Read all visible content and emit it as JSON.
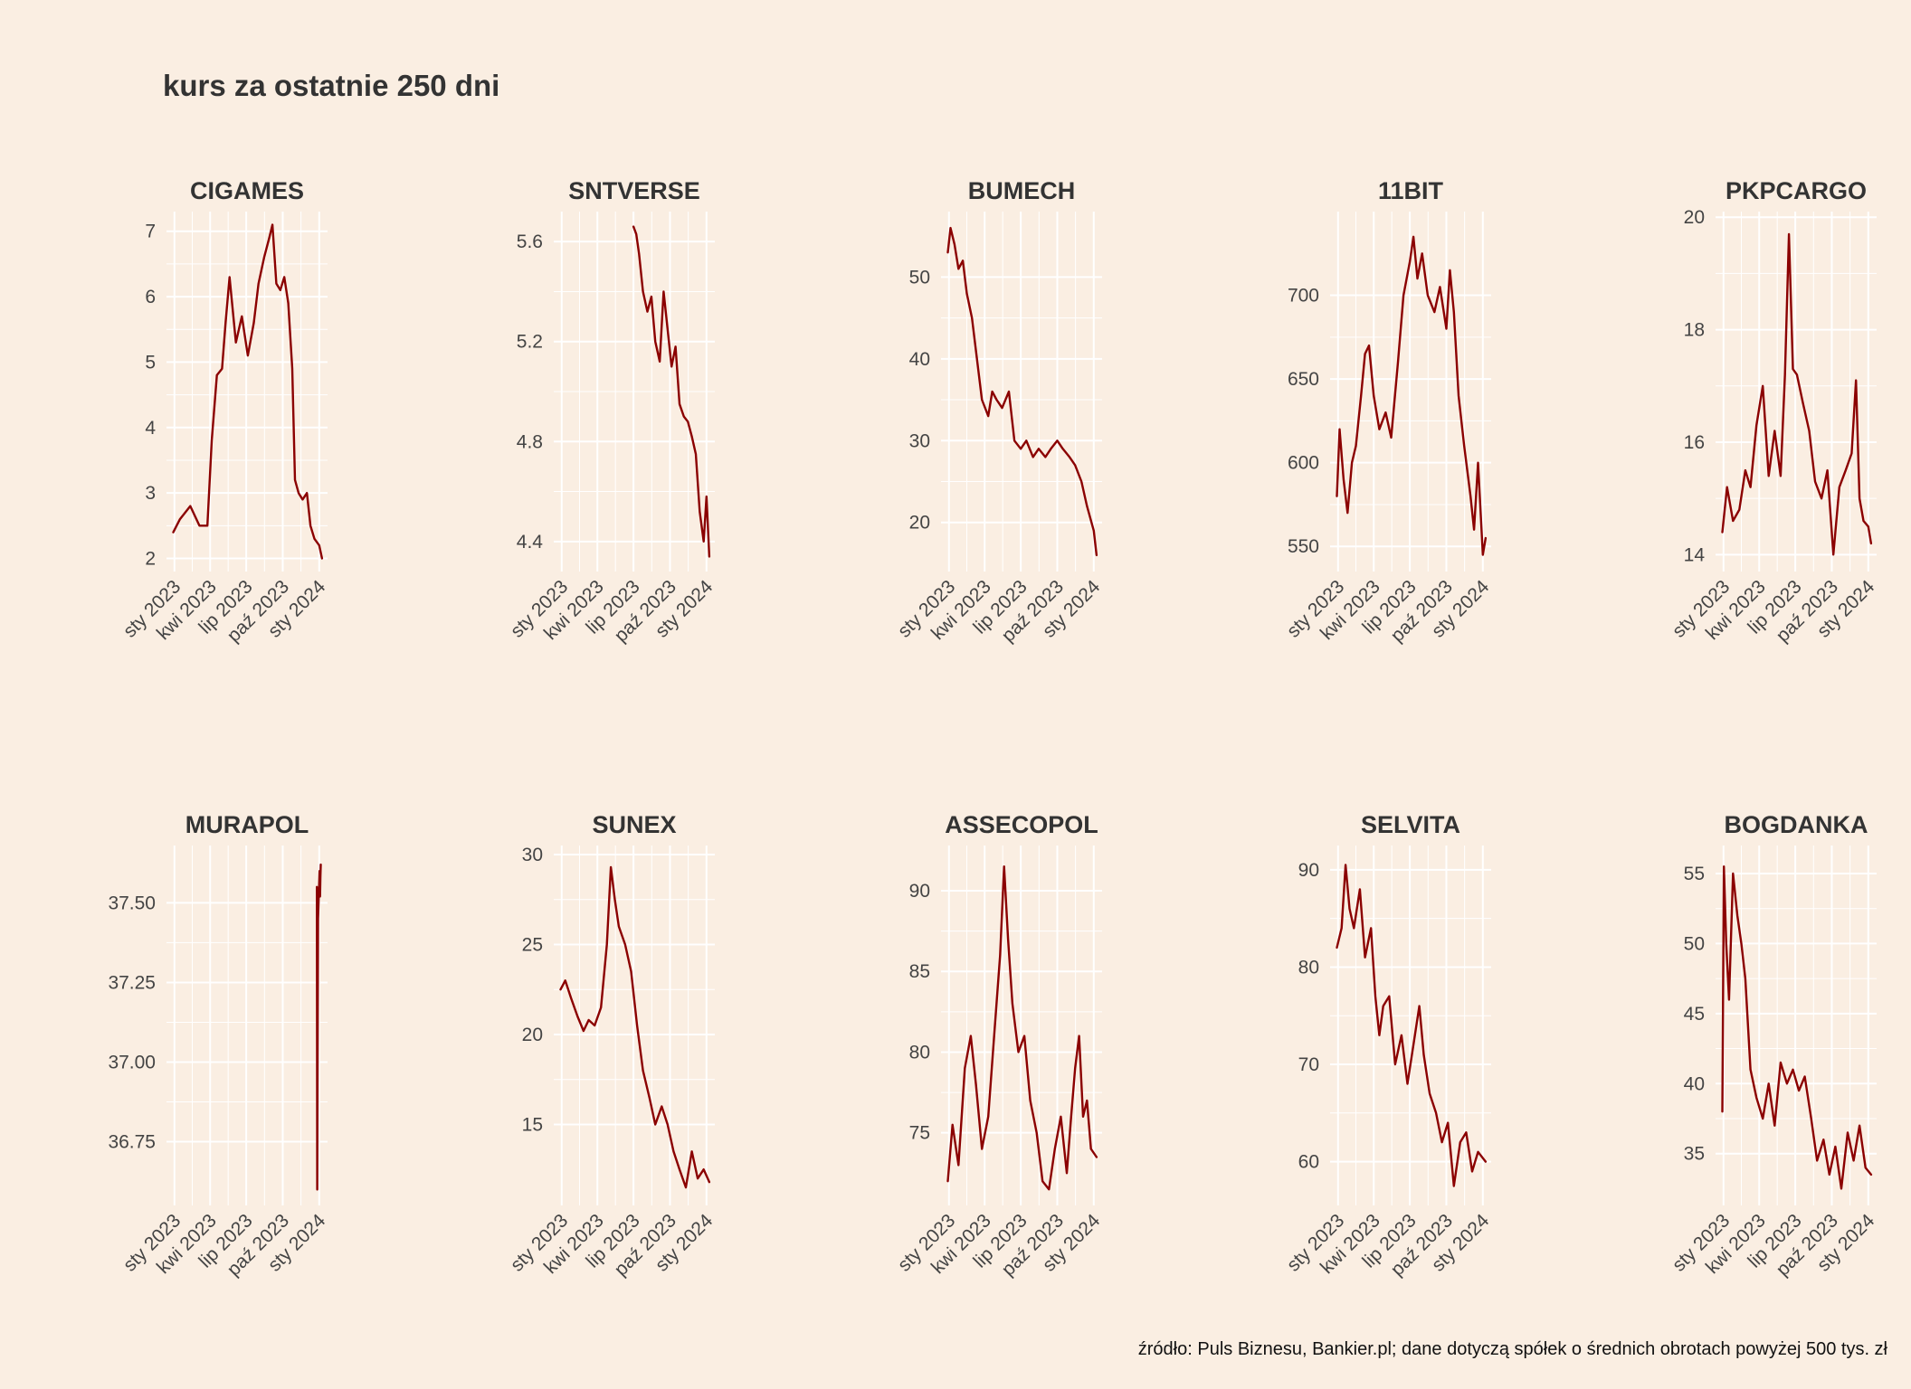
{
  "page": {
    "title": "kurs za ostatnie 250 dni",
    "caption": "źródło: Puls Biznesu, Bankier.pl; dane dotyczą spółek o średnich obrotach powyżej 500 tys. zł"
  },
  "colors": {
    "background": "#faeee2",
    "line": "#8b0000",
    "grid": "#ffffff",
    "text": "#333333"
  },
  "chart_data": [
    {
      "type": "line",
      "title": "CIGAMES",
      "x_ticks": [
        "sty 2023",
        "kwi 2023",
        "lip 2023",
        "paź 2023",
        "sty 2024"
      ],
      "xlim": [
        "2022-12-12",
        "2024-01-22"
      ],
      "ylim": [
        1.8,
        7.3
      ],
      "y_ticks": [
        2,
        3,
        4,
        5,
        6,
        7
      ],
      "y_tick_labels": [
        "2",
        "3",
        "4",
        "5",
        "6",
        "7"
      ],
      "x": [
        "2022-12-29",
        "2023-01-15",
        "2023-02-10",
        "2023-03-05",
        "2023-03-25",
        "2023-04-05",
        "2023-04-18",
        "2023-05-01",
        "2023-05-10",
        "2023-05-20",
        "2023-06-05",
        "2023-06-20",
        "2023-07-05",
        "2023-07-20",
        "2023-08-01",
        "2023-08-15",
        "2023-08-28",
        "2023-09-05",
        "2023-09-15",
        "2023-09-25",
        "2023-10-05",
        "2023-10-15",
        "2023-10-25",
        "2023-11-01",
        "2023-11-10",
        "2023-11-20",
        "2023-12-01",
        "2023-12-10",
        "2023-12-20",
        "2024-01-01",
        "2024-01-08"
      ],
      "values": [
        2.4,
        2.6,
        2.8,
        2.5,
        2.5,
        3.8,
        4.8,
        4.9,
        5.6,
        6.3,
        5.3,
        5.7,
        5.1,
        5.6,
        6.2,
        6.6,
        6.9,
        7.1,
        6.2,
        6.1,
        6.3,
        5.9,
        4.9,
        3.2,
        3.0,
        2.9,
        3.0,
        2.5,
        2.3,
        2.2,
        2.0
      ]
    },
    {
      "type": "line",
      "title": "SNTVERSE",
      "x_ticks": [
        "sty 2023",
        "kwi 2023",
        "lip 2023",
        "paź 2023",
        "sty 2024"
      ],
      "xlim": [
        "2022-12-12",
        "2024-01-22"
      ],
      "ylim": [
        4.28,
        5.72
      ],
      "y_ticks": [
        4.4,
        4.8,
        5.2,
        5.6
      ],
      "y_tick_labels": [
        "4.4",
        "4.8",
        "5.2",
        "5.6"
      ],
      "x": [
        "2023-07-01",
        "2023-07-08",
        "2023-07-15",
        "2023-07-25",
        "2023-08-05",
        "2023-08-15",
        "2023-08-25",
        "2023-09-05",
        "2023-09-15",
        "2023-09-25",
        "2023-10-05",
        "2023-10-15",
        "2023-10-25",
        "2023-11-05",
        "2023-11-15",
        "2023-11-25",
        "2023-12-05",
        "2023-12-15",
        "2023-12-25",
        "2024-01-01",
        "2024-01-08"
      ],
      "values": [
        5.66,
        5.63,
        5.55,
        5.4,
        5.32,
        5.38,
        5.2,
        5.12,
        5.4,
        5.25,
        5.1,
        5.18,
        4.95,
        4.9,
        4.88,
        4.82,
        4.75,
        4.52,
        4.4,
        4.58,
        4.34
      ]
    },
    {
      "type": "line",
      "title": "BUMECH",
      "x_ticks": [
        "sty 2023",
        "kwi 2023",
        "lip 2023",
        "paź 2023",
        "sty 2024"
      ],
      "xlim": [
        "2022-12-12",
        "2024-01-22"
      ],
      "ylim": [
        14,
        58
      ],
      "y_ticks": [
        20,
        30,
        40,
        50
      ],
      "y_tick_labels": [
        "20",
        "30",
        "40",
        "50"
      ],
      "x": [
        "2022-12-29",
        "2023-01-05",
        "2023-01-15",
        "2023-01-25",
        "2023-02-05",
        "2023-02-15",
        "2023-02-28",
        "2023-03-10",
        "2023-03-25",
        "2023-04-10",
        "2023-04-20",
        "2023-05-01",
        "2023-05-15",
        "2023-06-01",
        "2023-06-15",
        "2023-07-01",
        "2023-07-15",
        "2023-08-01",
        "2023-08-15",
        "2023-09-01",
        "2023-09-15",
        "2023-10-01",
        "2023-10-15",
        "2023-11-01",
        "2023-11-15",
        "2023-12-01",
        "2023-12-15",
        "2024-01-01",
        "2024-01-08"
      ],
      "values": [
        53,
        56,
        54,
        51,
        52,
        48,
        45,
        41,
        35,
        33,
        36,
        35,
        34,
        36,
        30,
        29,
        30,
        28,
        29,
        28,
        29,
        30,
        29,
        28,
        27,
        25,
        22,
        19,
        16
      ]
    },
    {
      "type": "line",
      "title": "11BIT",
      "x_ticks": [
        "sty 2023",
        "kwi 2023",
        "lip 2023",
        "paź 2023",
        "sty 2024"
      ],
      "xlim": [
        "2022-12-12",
        "2024-01-22"
      ],
      "ylim": [
        535,
        750
      ],
      "y_ticks": [
        550,
        600,
        650,
        700
      ],
      "y_tick_labels": [
        "550",
        "600",
        "650",
        "700"
      ],
      "x": [
        "2022-12-29",
        "2023-01-05",
        "2023-01-15",
        "2023-01-25",
        "2023-02-05",
        "2023-02-15",
        "2023-02-28",
        "2023-03-10",
        "2023-03-20",
        "2023-04-01",
        "2023-04-15",
        "2023-05-01",
        "2023-05-15",
        "2023-06-01",
        "2023-06-15",
        "2023-07-01",
        "2023-07-10",
        "2023-07-20",
        "2023-08-01",
        "2023-08-15",
        "2023-09-01",
        "2023-09-15",
        "2023-10-01",
        "2023-10-10",
        "2023-10-20",
        "2023-11-01",
        "2023-11-15",
        "2023-12-01",
        "2023-12-10",
        "2023-12-20",
        "2024-01-01",
        "2024-01-08"
      ],
      "values": [
        580,
        620,
        590,
        570,
        600,
        610,
        640,
        665,
        670,
        640,
        620,
        630,
        615,
        660,
        700,
        720,
        735,
        710,
        725,
        700,
        690,
        705,
        680,
        715,
        690,
        640,
        610,
        580,
        560,
        600,
        545,
        555
      ]
    },
    {
      "type": "line",
      "title": "PKPCARGO",
      "x_ticks": [
        "sty 2023",
        "kwi 2023",
        "lip 2023",
        "paź 2023",
        "sty 2024"
      ],
      "xlim": [
        "2022-12-12",
        "2024-01-22"
      ],
      "ylim": [
        13.7,
        20.1
      ],
      "y_ticks": [
        14,
        16,
        18,
        20
      ],
      "y_tick_labels": [
        "14",
        "16",
        "18",
        "20"
      ],
      "x": [
        "2022-12-29",
        "2023-01-10",
        "2023-01-25",
        "2023-02-10",
        "2023-02-25",
        "2023-03-10",
        "2023-03-25",
        "2023-04-10",
        "2023-04-25",
        "2023-05-10",
        "2023-05-25",
        "2023-06-05",
        "2023-06-15",
        "2023-06-25",
        "2023-07-05",
        "2023-07-20",
        "2023-08-05",
        "2023-08-20",
        "2023-09-05",
        "2023-09-20",
        "2023-10-05",
        "2023-10-20",
        "2023-11-05",
        "2023-11-20",
        "2023-12-01",
        "2023-12-10",
        "2023-12-20",
        "2024-01-01",
        "2024-01-08"
      ],
      "values": [
        14.4,
        15.2,
        14.6,
        14.8,
        15.5,
        15.2,
        16.3,
        17.0,
        15.4,
        16.2,
        15.4,
        17.2,
        19.7,
        17.3,
        17.2,
        16.7,
        16.2,
        15.3,
        15.0,
        15.5,
        14.0,
        15.2,
        15.5,
        15.8,
        17.1,
        15.0,
        14.6,
        14.5,
        14.2
      ]
    },
    {
      "type": "line",
      "title": "MURAPOL",
      "x_ticks": [
        "sty 2023",
        "kwi 2023",
        "lip 2023",
        "paź 2023",
        "sty 2024"
      ],
      "xlim": [
        "2022-12-12",
        "2024-01-22"
      ],
      "ylim": [
        36.55,
        37.68
      ],
      "y_ticks": [
        36.75,
        37.0,
        37.25,
        37.5
      ],
      "y_tick_labels": [
        "36.75",
        "37.00",
        "37.25",
        "37.50"
      ],
      "x": [
        "2023-12-26",
        "2023-12-27",
        "2023-12-28",
        "2023-12-29",
        "2024-01-02",
        "2024-01-03",
        "2024-01-04",
        "2024-01-05"
      ],
      "values": [
        37.55,
        36.6,
        37.0,
        37.45,
        37.6,
        37.52,
        37.58,
        37.62
      ]
    },
    {
      "type": "line",
      "title": "SUNEX",
      "x_ticks": [
        "sty 2023",
        "kwi 2023",
        "lip 2023",
        "paź 2023",
        "sty 2024"
      ],
      "xlim": [
        "2022-12-12",
        "2024-01-22"
      ],
      "ylim": [
        10.5,
        30.5
      ],
      "y_ticks": [
        15,
        20,
        25,
        30
      ],
      "y_tick_labels": [
        "15",
        "20",
        "25",
        "30"
      ],
      "x": [
        "2022-12-29",
        "2023-01-10",
        "2023-01-25",
        "2023-02-10",
        "2023-02-25",
        "2023-03-10",
        "2023-03-25",
        "2023-04-10",
        "2023-04-25",
        "2023-05-05",
        "2023-05-15",
        "2023-05-25",
        "2023-06-10",
        "2023-06-25",
        "2023-07-10",
        "2023-07-25",
        "2023-08-10",
        "2023-08-25",
        "2023-09-10",
        "2023-09-25",
        "2023-10-10",
        "2023-10-25",
        "2023-11-10",
        "2023-11-25",
        "2023-12-10",
        "2023-12-25",
        "2024-01-08"
      ],
      "values": [
        22.5,
        23.0,
        22.0,
        21.0,
        20.2,
        20.8,
        20.5,
        21.5,
        25.0,
        29.3,
        27.5,
        26.0,
        25.0,
        23.5,
        20.5,
        18.0,
        16.5,
        15.0,
        16.0,
        15.0,
        13.5,
        12.5,
        11.5,
        13.5,
        12.0,
        12.5,
        11.8
      ]
    },
    {
      "type": "line",
      "title": "ASSECOPOL",
      "x_ticks": [
        "sty 2023",
        "kwi 2023",
        "lip 2023",
        "paź 2023",
        "sty 2024"
      ],
      "xlim": [
        "2022-12-12",
        "2024-01-22"
      ],
      "ylim": [
        70.5,
        92.8
      ],
      "y_ticks": [
        75,
        80,
        85,
        90
      ],
      "y_tick_labels": [
        "75",
        "80",
        "85",
        "90"
      ],
      "x": [
        "2022-12-29",
        "2023-01-10",
        "2023-01-25",
        "2023-02-10",
        "2023-02-25",
        "2023-03-10",
        "2023-03-25",
        "2023-04-10",
        "2023-04-25",
        "2023-05-10",
        "2023-05-20",
        "2023-05-30",
        "2023-06-10",
        "2023-06-25",
        "2023-07-10",
        "2023-07-25",
        "2023-08-10",
        "2023-08-25",
        "2023-09-10",
        "2023-09-25",
        "2023-10-10",
        "2023-10-25",
        "2023-11-05",
        "2023-11-15",
        "2023-11-25",
        "2023-12-05",
        "2023-12-15",
        "2023-12-25",
        "2024-01-08"
      ],
      "values": [
        72.0,
        75.5,
        73.0,
        79.0,
        81.0,
        78.0,
        74.0,
        76.0,
        81.0,
        86.0,
        91.5,
        87.0,
        83.0,
        80.0,
        81.0,
        77.0,
        75.0,
        72.0,
        71.5,
        74.0,
        76.0,
        72.5,
        76.0,
        79.0,
        81.0,
        76.0,
        77.0,
        74.0,
        73.5
      ]
    },
    {
      "type": "line",
      "title": "SELVITA",
      "x_ticks": [
        "sty 2023",
        "kwi 2023",
        "lip 2023",
        "paź 2023",
        "sty 2024"
      ],
      "xlim": [
        "2022-12-12",
        "2024-01-22"
      ],
      "ylim": [
        55.5,
        92.5
      ],
      "y_ticks": [
        60,
        70,
        80,
        90
      ],
      "y_tick_labels": [
        "60",
        "70",
        "80",
        "90"
      ],
      "x": [
        "2022-12-29",
        "2023-01-10",
        "2023-01-20",
        "2023-01-30",
        "2023-02-10",
        "2023-02-25",
        "2023-03-10",
        "2023-03-25",
        "2023-04-05",
        "2023-04-15",
        "2023-04-25",
        "2023-05-10",
        "2023-05-25",
        "2023-06-10",
        "2023-06-25",
        "2023-07-10",
        "2023-07-25",
        "2023-08-05",
        "2023-08-20",
        "2023-09-05",
        "2023-09-20",
        "2023-10-05",
        "2023-10-20",
        "2023-11-05",
        "2023-11-20",
        "2023-12-05",
        "2023-12-20",
        "2024-01-08"
      ],
      "values": [
        82.0,
        84.0,
        90.5,
        86.0,
        84.0,
        88.0,
        81.0,
        84.0,
        77.0,
        73.0,
        76.0,
        77.0,
        70.0,
        73.0,
        68.0,
        72.0,
        76.0,
        71.0,
        67.0,
        65.0,
        62.0,
        64.0,
        57.5,
        62.0,
        63.0,
        59.0,
        61.0,
        60.0
      ]
    },
    {
      "type": "line",
      "title": "BOGDANKA",
      "x_ticks": [
        "sty 2023",
        "kwi 2023",
        "lip 2023",
        "paź 2023",
        "sty 2024"
      ],
      "xlim": [
        "2022-12-12",
        "2024-01-22"
      ],
      "ylim": [
        31.3,
        57.0
      ],
      "y_ticks": [
        35,
        40,
        45,
        50,
        55
      ],
      "y_tick_labels": [
        "35",
        "40",
        "45",
        "50",
        "55"
      ],
      "x": [
        "2022-12-29",
        "2023-01-02",
        "2023-01-08",
        "2023-01-15",
        "2023-01-25",
        "2023-02-05",
        "2023-02-15",
        "2023-02-25",
        "2023-03-10",
        "2023-03-25",
        "2023-04-10",
        "2023-04-25",
        "2023-05-10",
        "2023-05-25",
        "2023-06-10",
        "2023-06-25",
        "2023-07-10",
        "2023-07-25",
        "2023-08-10",
        "2023-08-25",
        "2023-09-10",
        "2023-09-25",
        "2023-10-10",
        "2023-10-25",
        "2023-11-10",
        "2023-11-25",
        "2023-12-10",
        "2023-12-25",
        "2024-01-08"
      ],
      "values": [
        38.0,
        55.5,
        50.0,
        46.0,
        55.0,
        52.0,
        50.0,
        47.5,
        41.0,
        39.0,
        37.5,
        40.0,
        37.0,
        41.5,
        40.0,
        41.0,
        39.5,
        40.5,
        37.5,
        34.5,
        36.0,
        33.5,
        35.5,
        32.5,
        36.5,
        34.5,
        37.0,
        34.0,
        33.5
      ]
    }
  ]
}
